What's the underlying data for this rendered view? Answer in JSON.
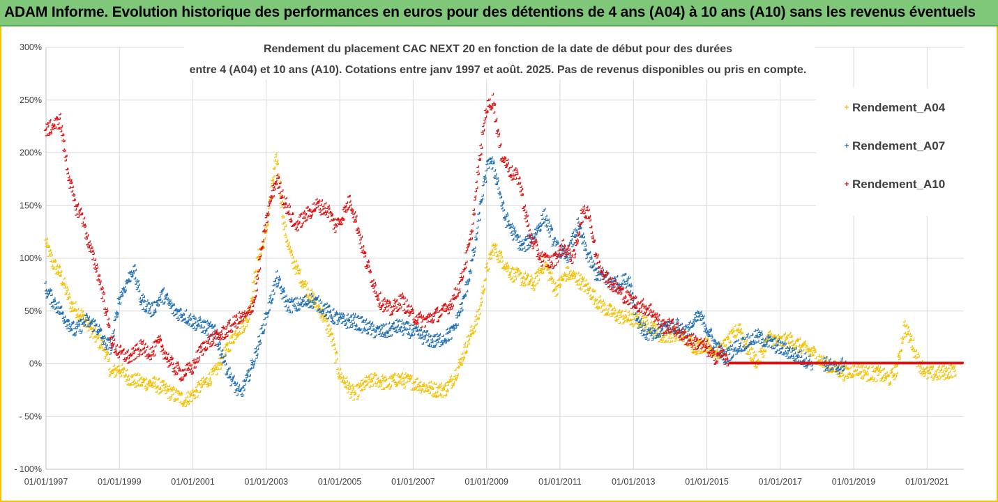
{
  "banner": {
    "text": "ADAM Informe. Evolution historique des performances en euros pour des détentions de 4 ans (A04) à 10 ans (A10) sans les revenus éventuels",
    "color": "#7fc87a"
  },
  "chart_data": {
    "type": "scatter",
    "title_line1": "Rendement du placement CAC NEXT 20 en fonction de la date de début pour des durées",
    "title_line2": "entre 4 (A04) et 10 ans (A10). Cotations entre janv 1997 et août. 2025. Pas de revenus disponibles ou pris en compte.",
    "marker": "+",
    "x_unit": "year",
    "xlim": [
      1997.0,
      2022.0
    ],
    "ylim": [
      -100,
      300
    ],
    "y_ticks": [
      {
        "value": 300,
        "label": "300%"
      },
      {
        "value": 250,
        "label": "250%"
      },
      {
        "value": 200,
        "label": "200%"
      },
      {
        "value": 150,
        "label": "150%"
      },
      {
        "value": 100,
        "label": "100%"
      },
      {
        "value": 50,
        "label": "50%"
      },
      {
        "value": 0,
        "label": "0%"
      },
      {
        "value": -50,
        "label": "- 50%"
      },
      {
        "value": -100,
        "label": "- 100%"
      }
    ],
    "x_ticks": [
      {
        "value": 1997,
        "label": "01/01/1997"
      },
      {
        "value": 1999,
        "label": "01/01/1999"
      },
      {
        "value": 2001,
        "label": "01/01/2001"
      },
      {
        "value": 2003,
        "label": "01/01/2003"
      },
      {
        "value": 2005,
        "label": "01/01/2005"
      },
      {
        "value": 2007,
        "label": "01/01/2007"
      },
      {
        "value": 2009,
        "label": "01/01/2009"
      },
      {
        "value": 2011,
        "label": "01/01/2011"
      },
      {
        "value": 2013,
        "label": "01/01/2013"
      },
      {
        "value": 2015,
        "label": "01/01/2015"
      },
      {
        "value": 2017,
        "label": "01/01/2017"
      },
      {
        "value": 2019,
        "label": "01/01/2019"
      },
      {
        "value": 2021,
        "label": "01/01/2021"
      }
    ],
    "grid": true,
    "legend_position": "right",
    "series": [
      {
        "name": "Rendement_A04",
        "color": "#f5c000",
        "points": [
          [
            1997.0,
            115
          ],
          [
            1997.2,
            95
          ],
          [
            1997.4,
            85
          ],
          [
            1997.7,
            55
          ],
          [
            1998.0,
            45
          ],
          [
            1998.3,
            28
          ],
          [
            1998.6,
            15
          ],
          [
            1998.8,
            -10
          ],
          [
            1999.0,
            -5
          ],
          [
            1999.3,
            -15
          ],
          [
            1999.6,
            -18
          ],
          [
            2000.0,
            -20
          ],
          [
            2000.4,
            -28
          ],
          [
            2000.8,
            -35
          ],
          [
            2001.0,
            -30
          ],
          [
            2001.3,
            -20
          ],
          [
            2001.6,
            -10
          ],
          [
            2001.9,
            10
          ],
          [
            2002.2,
            30
          ],
          [
            2002.5,
            40
          ],
          [
            2002.8,
            100
          ],
          [
            2003.0,
            120
          ],
          [
            2003.2,
            175
          ],
          [
            2003.3,
            195
          ],
          [
            2003.5,
            130
          ],
          [
            2003.7,
            100
          ],
          [
            2003.9,
            85
          ],
          [
            2004.2,
            65
          ],
          [
            2004.5,
            50
          ],
          [
            2004.8,
            25
          ],
          [
            2005.0,
            -10
          ],
          [
            2005.2,
            -20
          ],
          [
            2005.4,
            -30
          ],
          [
            2005.7,
            -20
          ],
          [
            2006.0,
            -15
          ],
          [
            2006.3,
            -20
          ],
          [
            2006.6,
            -15
          ],
          [
            2007.0,
            -18
          ],
          [
            2007.3,
            -22
          ],
          [
            2007.6,
            -25
          ],
          [
            2007.9,
            -25
          ],
          [
            2008.1,
            -15
          ],
          [
            2008.3,
            0
          ],
          [
            2008.5,
            20
          ],
          [
            2008.8,
            45
          ],
          [
            2009.0,
            85
          ],
          [
            2009.2,
            110
          ],
          [
            2009.4,
            100
          ],
          [
            2009.7,
            85
          ],
          [
            2010.0,
            80
          ],
          [
            2010.3,
            75
          ],
          [
            2010.6,
            95
          ],
          [
            2010.9,
            70
          ],
          [
            2011.2,
            85
          ],
          [
            2011.5,
            80
          ],
          [
            2011.8,
            70
          ],
          [
            2012.0,
            60
          ],
          [
            2012.3,
            50
          ],
          [
            2012.6,
            45
          ],
          [
            2012.9,
            42
          ],
          [
            2013.2,
            40
          ],
          [
            2013.5,
            35
          ],
          [
            2013.8,
            25
          ],
          [
            2014.1,
            28
          ],
          [
            2014.4,
            25
          ],
          [
            2014.7,
            15
          ],
          [
            2015.0,
            18
          ],
          [
            2015.3,
            10
          ],
          [
            2015.6,
            20
          ],
          [
            2015.9,
            35
          ],
          [
            2016.1,
            15
          ],
          [
            2016.4,
            0
          ],
          [
            2016.7,
            25
          ],
          [
            2017.0,
            20
          ],
          [
            2017.3,
            22
          ],
          [
            2017.6,
            15
          ],
          [
            2017.9,
            10
          ],
          [
            2018.2,
            0
          ],
          [
            2018.5,
            -5
          ],
          [
            2018.8,
            -10
          ],
          [
            2019.1,
            -5
          ],
          [
            2019.4,
            -10
          ],
          [
            2019.7,
            -10
          ],
          [
            2020.0,
            -15
          ],
          [
            2020.2,
            -5
          ],
          [
            2020.4,
            35
          ],
          [
            2020.6,
            20
          ],
          [
            2020.8,
            0
          ],
          [
            2021.0,
            -10
          ],
          [
            2021.3,
            -10
          ],
          [
            2021.6,
            -8
          ],
          [
            2021.8,
            -5
          ]
        ]
      },
      {
        "name": "Rendement_A07",
        "color": "#1f6fb5",
        "points": [
          [
            1997.0,
            70
          ],
          [
            1997.2,
            60
          ],
          [
            1997.5,
            45
          ],
          [
            1997.8,
            30
          ],
          [
            1998.1,
            40
          ],
          [
            1998.4,
            35
          ],
          [
            1998.6,
            20
          ],
          [
            1998.8,
            15
          ],
          [
            1999.0,
            60
          ],
          [
            1999.2,
            75
          ],
          [
            1999.4,
            90
          ],
          [
            1999.6,
            60
          ],
          [
            1999.9,
            50
          ],
          [
            2000.2,
            65
          ],
          [
            2000.5,
            50
          ],
          [
            2000.8,
            45
          ],
          [
            2001.0,
            40
          ],
          [
            2001.3,
            35
          ],
          [
            2001.6,
            30
          ],
          [
            2001.8,
            10
          ],
          [
            2002.0,
            -10
          ],
          [
            2002.3,
            -30
          ],
          [
            2002.5,
            -15
          ],
          [
            2002.7,
            5
          ],
          [
            2002.9,
            30
          ],
          [
            2003.1,
            55
          ],
          [
            2003.3,
            80
          ],
          [
            2003.6,
            55
          ],
          [
            2003.9,
            55
          ],
          [
            2004.2,
            60
          ],
          [
            2004.5,
            55
          ],
          [
            2004.8,
            45
          ],
          [
            2005.1,
            40
          ],
          [
            2005.4,
            40
          ],
          [
            2005.7,
            35
          ],
          [
            2006.0,
            30
          ],
          [
            2006.3,
            30
          ],
          [
            2006.6,
            35
          ],
          [
            2007.0,
            30
          ],
          [
            2007.3,
            25
          ],
          [
            2007.6,
            20
          ],
          [
            2007.9,
            25
          ],
          [
            2008.1,
            30
          ],
          [
            2008.4,
            60
          ],
          [
            2008.7,
            110
          ],
          [
            2008.9,
            160
          ],
          [
            2009.1,
            195
          ],
          [
            2009.3,
            175
          ],
          [
            2009.5,
            140
          ],
          [
            2009.8,
            120
          ],
          [
            2010.0,
            110
          ],
          [
            2010.3,
            120
          ],
          [
            2010.6,
            140
          ],
          [
            2010.9,
            110
          ],
          [
            2011.2,
            100
          ],
          [
            2011.5,
            130
          ],
          [
            2011.8,
            100
          ],
          [
            2012.0,
            85
          ],
          [
            2012.3,
            80
          ],
          [
            2012.6,
            75
          ],
          [
            2012.9,
            80
          ],
          [
            2013.1,
            45
          ],
          [
            2013.3,
            30
          ],
          [
            2013.6,
            25
          ],
          [
            2013.9,
            35
          ],
          [
            2014.2,
            35
          ],
          [
            2014.5,
            30
          ],
          [
            2014.8,
            45
          ],
          [
            2015.0,
            35
          ],
          [
            2015.2,
            20
          ],
          [
            2015.5,
            5
          ],
          [
            2015.8,
            15
          ],
          [
            2016.1,
            20
          ],
          [
            2016.4,
            25
          ],
          [
            2016.7,
            20
          ],
          [
            2017.0,
            15
          ],
          [
            2017.3,
            10
          ],
          [
            2017.6,
            5
          ],
          [
            2017.9,
            0
          ],
          [
            2018.2,
            0
          ],
          [
            2018.5,
            -5
          ],
          [
            2018.8,
            0
          ]
        ]
      },
      {
        "name": "Rendement_A10",
        "color": "#e01010",
        "points": [
          [
            1997.0,
            220
          ],
          [
            1997.2,
            225
          ],
          [
            1997.4,
            230
          ],
          [
            1997.6,
            185
          ],
          [
            1997.8,
            150
          ],
          [
            1998.0,
            140
          ],
          [
            1998.2,
            110
          ],
          [
            1998.4,
            90
          ],
          [
            1998.6,
            60
          ],
          [
            1998.8,
            20
          ],
          [
            1999.0,
            10
          ],
          [
            1999.3,
            5
          ],
          [
            1999.6,
            15
          ],
          [
            1999.9,
            10
          ],
          [
            2000.1,
            20
          ],
          [
            2000.4,
            0
          ],
          [
            2000.7,
            -10
          ],
          [
            2001.0,
            -5
          ],
          [
            2001.2,
            10
          ],
          [
            2001.4,
            20
          ],
          [
            2001.7,
            25
          ],
          [
            2001.9,
            30
          ],
          [
            2002.2,
            40
          ],
          [
            2002.5,
            45
          ],
          [
            2002.7,
            60
          ],
          [
            2002.9,
            110
          ],
          [
            2003.1,
            150
          ],
          [
            2003.3,
            175
          ],
          [
            2003.5,
            155
          ],
          [
            2003.8,
            130
          ],
          [
            2004.1,
            140
          ],
          [
            2004.4,
            150
          ],
          [
            2004.7,
            145
          ],
          [
            2004.9,
            130
          ],
          [
            2005.1,
            140
          ],
          [
            2005.3,
            155
          ],
          [
            2005.5,
            130
          ],
          [
            2005.7,
            100
          ],
          [
            2005.9,
            80
          ],
          [
            2006.1,
            60
          ],
          [
            2006.4,
            50
          ],
          [
            2006.7,
            60
          ],
          [
            2007.0,
            45
          ],
          [
            2007.3,
            40
          ],
          [
            2007.6,
            45
          ],
          [
            2007.9,
            50
          ],
          [
            2008.1,
            60
          ],
          [
            2008.3,
            75
          ],
          [
            2008.6,
            120
          ],
          [
            2008.8,
            185
          ],
          [
            2009.0,
            240
          ],
          [
            2009.2,
            250
          ],
          [
            2009.4,
            200
          ],
          [
            2009.7,
            180
          ],
          [
            2009.9,
            175
          ],
          [
            2010.2,
            120
          ],
          [
            2010.5,
            100
          ],
          [
            2010.8,
            95
          ],
          [
            2011.1,
            110
          ],
          [
            2011.4,
            100
          ],
          [
            2011.6,
            140
          ],
          [
            2011.8,
            145
          ],
          [
            2012.0,
            100
          ],
          [
            2012.3,
            80
          ],
          [
            2012.6,
            70
          ],
          [
            2012.9,
            60
          ],
          [
            2013.2,
            55
          ],
          [
            2013.5,
            50
          ],
          [
            2013.8,
            35
          ],
          [
            2014.1,
            35
          ],
          [
            2014.4,
            25
          ],
          [
            2014.7,
            20
          ],
          [
            2015.0,
            15
          ],
          [
            2015.2,
            5
          ],
          [
            2015.4,
            10
          ],
          [
            2015.6,
            0
          ],
          [
            2016.0,
            0
          ],
          [
            2016.5,
            0
          ],
          [
            2017.0,
            0
          ],
          [
            2017.5,
            0
          ],
          [
            2018.0,
            0
          ],
          [
            2018.5,
            0
          ],
          [
            2019.0,
            0
          ],
          [
            2019.5,
            0
          ],
          [
            2020.0,
            0
          ],
          [
            2020.5,
            0
          ],
          [
            2021.0,
            0
          ],
          [
            2021.5,
            0
          ],
          [
            2022.0,
            0
          ]
        ]
      }
    ]
  }
}
